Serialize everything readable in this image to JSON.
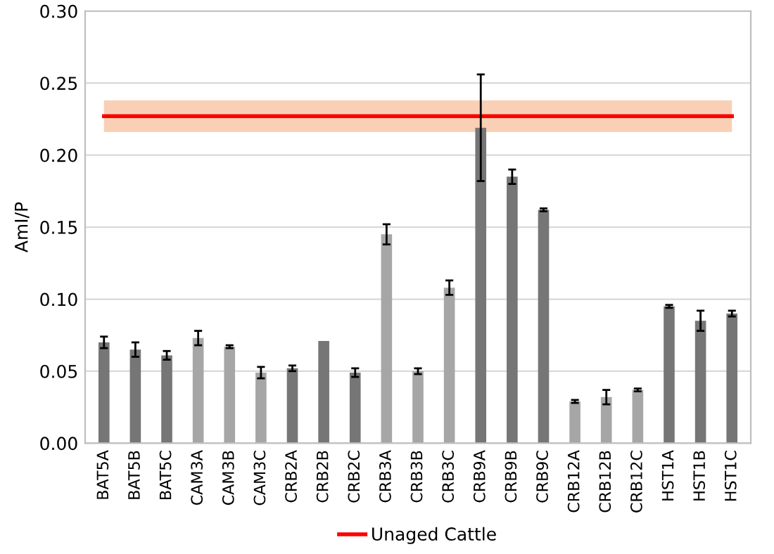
{
  "chart_data": {
    "type": "bar",
    "ylabel": "AmI/P",
    "categories": [
      "BAT5A",
      "BAT5B",
      "BAT5C",
      "CAM3A",
      "CAM3B",
      "CAM3C",
      "CRB2A",
      "CRB2B",
      "CRB2C",
      "CRB3A",
      "CRB3B",
      "CRB3C",
      "CRB9A",
      "CRB9B",
      "CRB9C",
      "CRB12A",
      "CRB12B",
      "CRB12C",
      "HST1A",
      "HST1B",
      "HST1C"
    ],
    "values": [
      0.07,
      0.065,
      0.061,
      0.073,
      0.067,
      0.049,
      0.052,
      0.071,
      0.049,
      0.145,
      0.05,
      0.108,
      0.219,
      0.185,
      0.162,
      0.029,
      0.032,
      0.037,
      0.095,
      0.085,
      0.09
    ],
    "errors": [
      0.004,
      0.005,
      0.003,
      0.005,
      0.001,
      0.004,
      0.002,
      null,
      0.003,
      0.007,
      0.002,
      0.005,
      0.037,
      0.005,
      0.001,
      0.001,
      0.005,
      0.001,
      0.001,
      0.007,
      0.002
    ],
    "colors": [
      "#767676",
      "#767676",
      "#767676",
      "#a6a6a6",
      "#a6a6a6",
      "#a6a6a6",
      "#767676",
      "#767676",
      "#767676",
      "#a6a6a6",
      "#a6a6a6",
      "#a6a6a6",
      "#767676",
      "#767676",
      "#767676",
      "#a6a6a6",
      "#a6a6a6",
      "#a6a6a6",
      "#767676",
      "#767676",
      "#767676"
    ],
    "ylim": [
      0,
      0.3
    ],
    "yticks": [
      {
        "value": 0,
        "label": "0.00"
      },
      {
        "value": 0.05,
        "label": "0.05"
      },
      {
        "value": 0.1,
        "label": "0.10"
      },
      {
        "value": 0.15,
        "label": "0.15"
      },
      {
        "value": 0.2,
        "label": "0.20"
      },
      {
        "value": 0.25,
        "label": "0.25"
      },
      {
        "value": 0.3,
        "label": "0.30"
      }
    ],
    "grid": "y",
    "ref_lines": [
      {
        "axis": "y",
        "value": 0.227,
        "label": "Unaged Cattle",
        "color": "#ff0000"
      }
    ],
    "bands": [
      {
        "axis": "y",
        "from": 0.216,
        "to": 0.238,
        "color": "#f8cbad"
      }
    ],
    "legend": "bottom"
  }
}
